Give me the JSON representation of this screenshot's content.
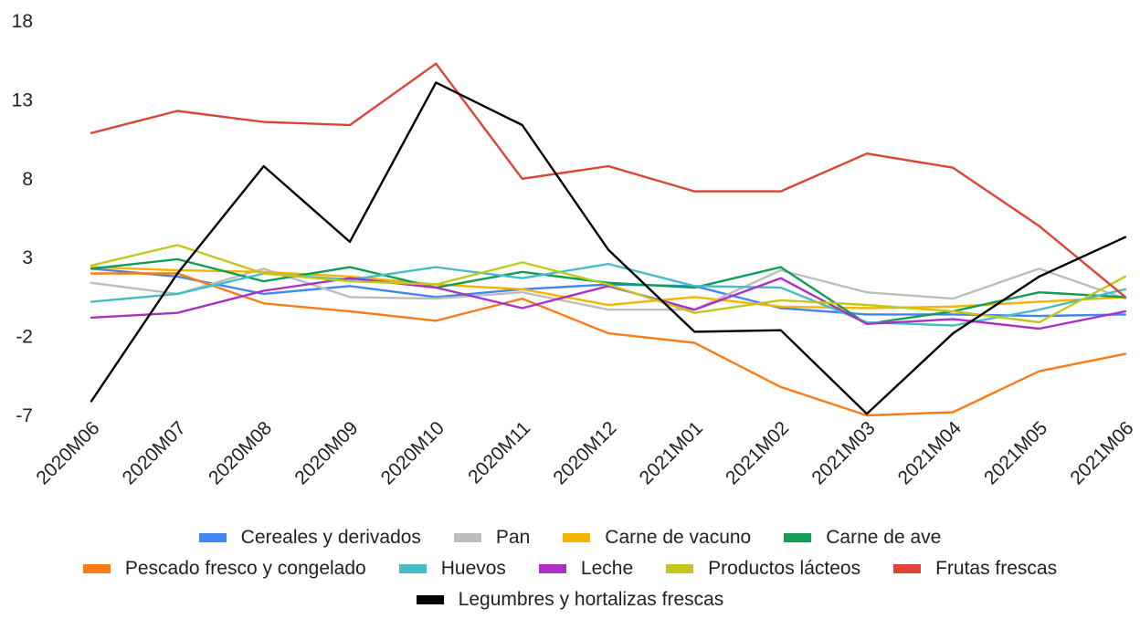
{
  "chart_data": {
    "type": "line",
    "title": "",
    "xlabel": "",
    "ylabel": "",
    "ylim": [
      -7,
      18
    ],
    "yticks": [
      18,
      13,
      8,
      3,
      -2,
      -7
    ],
    "y_tick_labels": [
      "18",
      "13",
      "8",
      "3",
      "-2",
      "-7"
    ],
    "categories": [
      "2020M06",
      "2020M07",
      "2020M08",
      "2020M09",
      "2020M10",
      "2020M11",
      "2020M12",
      "2021M01",
      "2021M02",
      "2021M03",
      "2021M04",
      "2021M05",
      "2021M06"
    ],
    "grid": false,
    "legend_position": "bottom",
    "series": [
      {
        "name": "Cereales y derivados",
        "color": "#4285F4",
        "values": [
          2.3,
          1.8,
          0.7,
          1.2,
          0.5,
          1.0,
          1.3,
          1.2,
          -0.2,
          -0.6,
          -0.6,
          -0.7,
          -0.6
        ]
      },
      {
        "name": "Pan",
        "color": "#BDBDBD",
        "values": [
          1.4,
          0.7,
          2.3,
          0.5,
          0.4,
          0.8,
          -0.3,
          -0.3,
          2.2,
          0.8,
          0.4,
          2.3,
          0.4
        ]
      },
      {
        "name": "Carne de vacuno",
        "color": "#F4B400",
        "values": [
          2.4,
          2.2,
          2.1,
          1.8,
          1.3,
          1.0,
          0.0,
          0.5,
          -0.1,
          -0.2,
          -0.1,
          0.2,
          0.5
        ]
      },
      {
        "name": "Carne de ave",
        "color": "#0F9D58",
        "values": [
          2.3,
          2.9,
          1.5,
          2.4,
          1.1,
          2.1,
          1.4,
          1.1,
          2.4,
          -1.2,
          -0.4,
          0.8,
          0.5
        ]
      },
      {
        "name": "Pescado fresco y congelado",
        "color": "#FA7B17",
        "values": [
          2.0,
          2.0,
          0.1,
          -0.4,
          -1.0,
          0.4,
          -1.8,
          -2.4,
          -5.2,
          -7.0,
          -6.8,
          -4.2,
          -3.1
        ]
      },
      {
        "name": "Huevos",
        "color": "#46BDC6",
        "values": [
          0.2,
          0.7,
          2.0,
          1.6,
          2.4,
          1.7,
          2.6,
          1.2,
          1.1,
          -1.1,
          -1.3,
          -0.3,
          1.0
        ]
      },
      {
        "name": "Leche",
        "color": "#AB30C4",
        "values": [
          -0.8,
          -0.5,
          0.9,
          1.7,
          1.1,
          -0.2,
          1.2,
          -0.3,
          1.7,
          -1.2,
          -0.9,
          -1.5,
          -0.4
        ]
      },
      {
        "name": "Productos lácteos",
        "color": "#C1C71B",
        "values": [
          2.5,
          3.8,
          2.0,
          1.5,
          1.3,
          2.7,
          1.3,
          -0.5,
          0.3,
          0.0,
          -0.4,
          -1.1,
          1.8
        ]
      },
      {
        "name": "Frutas frescas",
        "color": "#DB4437",
        "values": [
          10.9,
          12.3,
          11.6,
          11.4,
          15.3,
          8.0,
          8.8,
          7.2,
          7.2,
          9.6,
          8.7,
          5.0,
          0.5
        ]
      },
      {
        "name": "Legumbres y hortalizas frescas",
        "color": "#000000",
        "values": [
          -6.1,
          2.0,
          8.8,
          4.0,
          14.1,
          11.4,
          3.5,
          -1.7,
          -1.6,
          -6.9,
          -1.8,
          1.8,
          4.3
        ]
      }
    ]
  },
  "legend_rows": [
    [
      0,
      1,
      2,
      3
    ],
    [
      4,
      5,
      6,
      7,
      8
    ],
    [
      9
    ]
  ]
}
